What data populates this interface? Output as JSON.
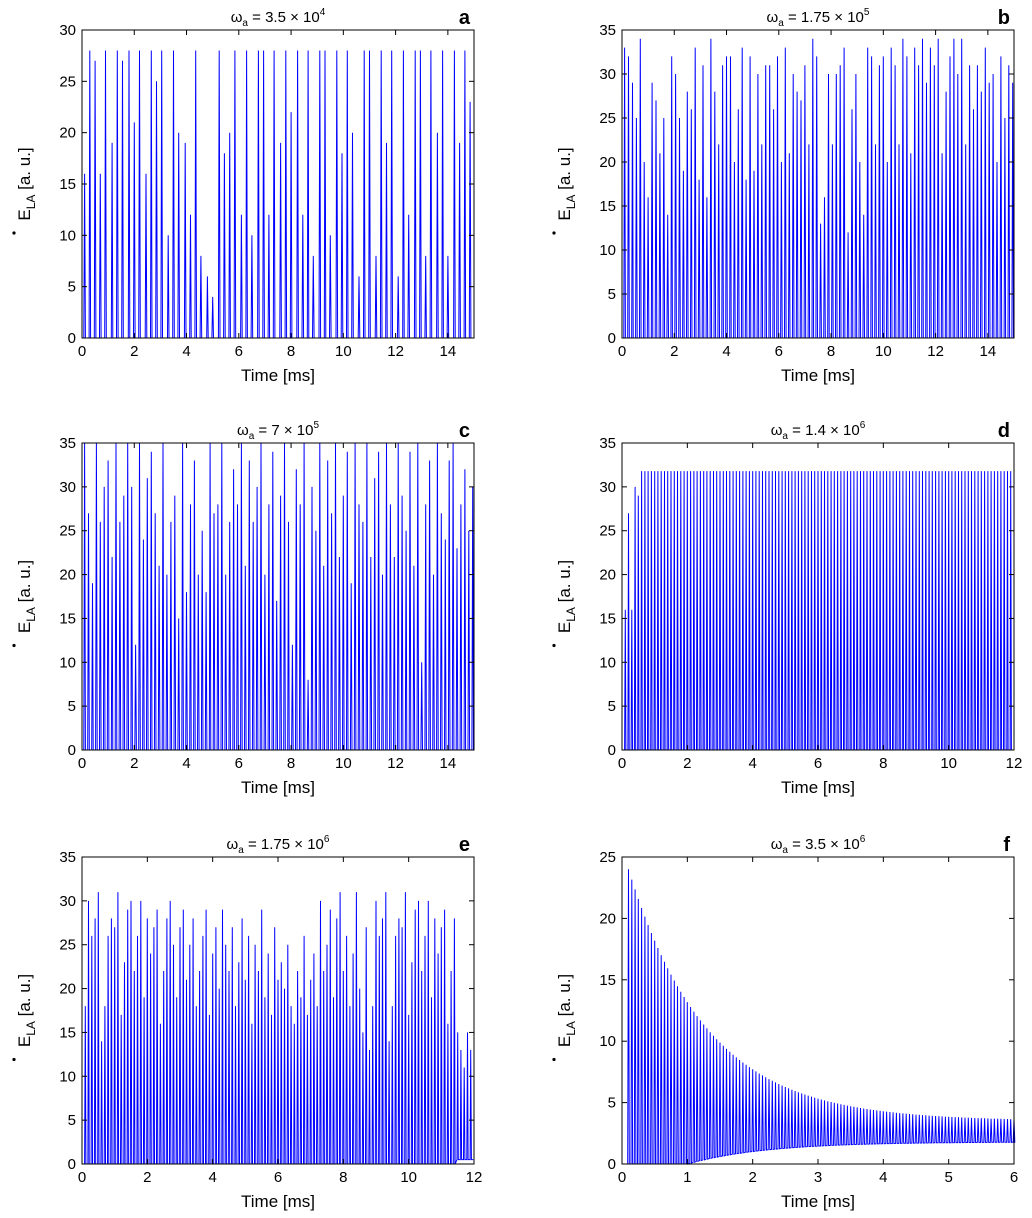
{
  "series_color": "#0000ff",
  "chart_data": [
    {
      "panel": "a",
      "type": "line",
      "title": "ω",
      "title_sub": "a",
      "title_eq": " = 3.5 × 10",
      "title_sup": "4",
      "xlabel": "Time [ms]",
      "ylabel": "E",
      "ylabel_sub": "LA",
      "ylabel_rest": " [a. u.]",
      "xlim": [
        0,
        15
      ],
      "ylim": [
        0,
        30
      ],
      "xticks": [
        0,
        2,
        4,
        6,
        8,
        10,
        12,
        14
      ],
      "yticks": [
        0,
        5,
        10,
        15,
        20,
        25,
        30
      ],
      "spike_times": [
        0.1,
        0.3,
        0.5,
        0.7,
        0.9,
        1.15,
        1.35,
        1.55,
        1.8,
        2.0,
        2.2,
        2.45,
        2.65,
        2.85,
        3.05,
        3.3,
        3.5,
        3.7,
        3.95,
        4.15,
        4.35,
        4.55,
        4.8,
        5.0,
        5.25,
        5.45,
        5.65,
        5.85,
        6.1,
        6.3,
        6.5,
        6.75,
        6.95,
        7.15,
        7.35,
        7.6,
        7.8,
        8.0,
        8.25,
        8.45,
        8.65,
        8.85,
        9.1,
        9.3,
        9.5,
        9.75,
        9.95,
        10.15,
        10.35,
        10.6,
        10.8,
        11.0,
        11.25,
        11.45,
        11.65,
        11.85,
        12.1,
        12.3,
        12.5,
        12.75,
        12.95,
        13.15,
        13.35,
        13.6,
        13.8,
        14.0,
        14.25,
        14.45,
        14.65,
        14.85
      ],
      "spike_peaks": [
        16,
        28,
        27,
        16,
        28,
        19,
        28,
        27,
        28,
        21,
        28,
        16,
        28,
        25,
        28,
        10,
        28,
        20,
        19,
        12,
        28,
        8,
        6,
        4,
        28,
        18,
        20,
        28,
        12,
        28,
        10,
        28,
        28,
        12,
        28,
        19,
        28,
        22,
        28,
        12,
        28,
        8,
        28,
        28,
        10,
        28,
        18,
        28,
        20,
        6,
        28,
        28,
        8,
        28,
        19,
        28,
        6,
        28,
        12,
        28,
        28,
        8,
        28,
        20,
        28,
        8,
        28,
        19,
        28,
        23
      ]
    },
    {
      "panel": "b",
      "type": "line",
      "title": "ω",
      "title_sub": "a",
      "title_eq": " = 1.75 × 10",
      "title_sup": "5",
      "xlabel": "Time [ms]",
      "ylabel": "E",
      "ylabel_sub": "LA",
      "ylabel_rest": " [a. u.]",
      "xlim": [
        0,
        15
      ],
      "ylim": [
        0,
        35
      ],
      "xticks": [
        0,
        2,
        4,
        6,
        8,
        10,
        12,
        14
      ],
      "yticks": [
        0,
        5,
        10,
        15,
        20,
        25,
        30,
        35
      ],
      "spike_times": [
        0.1,
        0.25,
        0.4,
        0.55,
        0.7,
        0.85,
        1.0,
        1.15,
        1.3,
        1.45,
        1.6,
        1.75,
        1.9,
        2.05,
        2.2,
        2.35,
        2.5,
        2.65,
        2.8,
        2.95,
        3.1,
        3.25,
        3.4,
        3.55,
        3.7,
        3.85,
        4.0,
        4.15,
        4.3,
        4.45,
        4.6,
        4.75,
        4.9,
        5.05,
        5.2,
        5.35,
        5.5,
        5.65,
        5.8,
        5.95,
        6.1,
        6.25,
        6.4,
        6.55,
        6.7,
        6.85,
        7.0,
        7.15,
        7.3,
        7.45,
        7.6,
        7.75,
        7.9,
        8.05,
        8.2,
        8.35,
        8.5,
        8.65,
        8.8,
        8.95,
        9.1,
        9.25,
        9.4,
        9.55,
        9.7,
        9.85,
        10.0,
        10.15,
        10.3,
        10.45,
        10.6,
        10.75,
        10.9,
        11.05,
        11.2,
        11.35,
        11.5,
        11.65,
        11.8,
        11.95,
        12.1,
        12.25,
        12.4,
        12.55,
        12.7,
        12.85,
        13.0,
        13.15,
        13.3,
        13.45,
        13.6,
        13.75,
        13.9,
        14.05,
        14.2,
        14.35,
        14.5,
        14.65,
        14.8,
        14.95
      ],
      "spike_peaks": [
        33,
        32,
        29,
        25,
        34,
        20,
        16,
        29,
        27,
        21,
        25,
        14,
        32,
        30,
        25,
        19,
        28,
        26,
        33,
        18,
        31,
        16,
        34,
        28,
        22,
        31,
        32,
        32,
        20,
        26,
        33,
        18,
        32,
        19,
        30,
        22,
        31,
        31,
        26,
        32,
        20,
        33,
        21,
        30,
        28,
        27,
        31,
        22,
        34,
        32,
        13,
        16,
        30,
        22,
        30,
        31,
        33,
        12,
        26,
        30,
        20,
        14,
        33,
        32,
        22,
        31,
        32,
        20,
        33,
        31,
        22,
        34,
        32,
        21,
        33,
        31,
        34,
        29,
        33,
        31,
        34,
        21,
        28,
        32,
        34,
        30,
        34,
        22,
        31,
        26,
        31,
        28,
        33,
        29,
        30,
        20,
        32,
        25,
        31,
        29
      ]
    },
    {
      "panel": "c",
      "type": "line",
      "title": "ω",
      "title_sub": "a",
      "title_eq": " = 7 × 10",
      "title_sup": "5",
      "xlabel": "Time [ms]",
      "ylabel": "E",
      "ylabel_sub": "LA",
      "ylabel_rest": " [a. u.]",
      "xlim": [
        0,
        15
      ],
      "ylim": [
        0,
        35
      ],
      "xticks": [
        0,
        2,
        4,
        6,
        8,
        10,
        12,
        14
      ],
      "yticks": [
        0,
        5,
        10,
        15,
        20,
        25,
        30,
        35
      ],
      "spike_times": [
        0.1,
        0.25,
        0.4,
        0.55,
        0.7,
        0.85,
        1.0,
        1.15,
        1.3,
        1.45,
        1.6,
        1.75,
        1.9,
        2.05,
        2.2,
        2.35,
        2.5,
        2.65,
        2.8,
        2.95,
        3.1,
        3.25,
        3.4,
        3.55,
        3.7,
        3.85,
        4.0,
        4.15,
        4.3,
        4.45,
        4.6,
        4.75,
        4.9,
        5.05,
        5.2,
        5.35,
        5.5,
        5.65,
        5.8,
        5.95,
        6.1,
        6.25,
        6.4,
        6.55,
        6.7,
        6.85,
        7.0,
        7.15,
        7.3,
        7.45,
        7.6,
        7.75,
        7.9,
        8.05,
        8.2,
        8.35,
        8.5,
        8.65,
        8.8,
        8.95,
        9.1,
        9.25,
        9.4,
        9.55,
        9.7,
        9.85,
        10.0,
        10.15,
        10.3,
        10.45,
        10.6,
        10.75,
        10.9,
        11.05,
        11.2,
        11.35,
        11.5,
        11.65,
        11.8,
        11.95,
        12.1,
        12.25,
        12.4,
        12.55,
        12.7,
        12.85,
        13.0,
        13.15,
        13.3,
        13.45,
        13.6,
        13.75,
        13.9,
        14.05,
        14.2,
        14.35,
        14.5,
        14.65,
        14.8,
        14.95
      ],
      "spike_peaks": [
        35,
        27,
        19,
        35,
        26,
        30,
        33,
        22,
        35,
        26,
        29,
        35,
        30,
        12,
        35,
        24,
        31,
        34,
        27,
        21,
        35,
        20,
        26,
        29,
        15,
        35,
        18,
        28,
        33,
        20,
        25,
        18,
        35,
        27,
        28,
        35,
        20,
        26,
        32,
        28,
        35,
        21,
        33,
        26,
        30,
        35,
        20,
        28,
        34,
        17,
        29,
        35,
        26,
        12,
        32,
        28,
        35,
        8,
        30,
        25,
        35,
        21,
        33,
        27,
        35,
        22,
        29,
        34,
        19,
        35,
        28,
        26,
        35,
        22,
        31,
        34,
        20,
        35,
        28,
        22,
        35,
        29,
        25,
        34,
        21,
        35,
        10,
        28,
        33,
        20,
        35,
        27,
        24,
        33,
        35,
        23,
        28,
        32,
        25,
        30
      ]
    },
    {
      "panel": "d",
      "type": "line",
      "title": "ω",
      "title_sub": "a",
      "title_eq": " = 1.4 × 10",
      "title_sup": "6",
      "xlabel": "Time [ms]",
      "ylabel": "E",
      "ylabel_sub": "LA",
      "ylabel_rest": " [a. u.]",
      "xlim": [
        0,
        12
      ],
      "ylim": [
        0,
        35
      ],
      "xticks": [
        0,
        2,
        4,
        6,
        8,
        10,
        12
      ],
      "yticks": [
        0,
        5,
        10,
        15,
        20,
        25,
        30,
        35
      ],
      "spike_period": 0.1,
      "spike_start": 0.1,
      "spike_end": 11.95,
      "early_peaks": [
        16,
        27,
        16,
        30,
        29,
        31.8
      ],
      "steady_peak": 31.8
    },
    {
      "panel": "e",
      "type": "line",
      "title": "ω",
      "title_sub": "a",
      "title_eq": " = 1.75 × 10",
      "title_sup": "6",
      "xlabel": "Time [ms]",
      "ylabel": "E",
      "ylabel_sub": "LA",
      "ylabel_rest": " [a. u.]",
      "xlim": [
        0,
        12
      ],
      "ylim": [
        0,
        35
      ],
      "xticks": [
        0,
        2,
        4,
        6,
        8,
        10,
        12
      ],
      "yticks": [
        0,
        5,
        10,
        15,
        20,
        25,
        30,
        35
      ],
      "spike_period": 0.1,
      "spike_start": 0.1,
      "spike_end": 11.9,
      "peaks_pattern": [
        18,
        30,
        26,
        28,
        31,
        14,
        18,
        26,
        28,
        27,
        31,
        17,
        23,
        29,
        30,
        22,
        26,
        30,
        19,
        28,
        24,
        27,
        29,
        16,
        22,
        28,
        30,
        25,
        19,
        27,
        29,
        21,
        25,
        28,
        18,
        22,
        26,
        29,
        17,
        24,
        27,
        20,
        29,
        25,
        22,
        27,
        18,
        23,
        28,
        21,
        26,
        16,
        25,
        22,
        29,
        19,
        24,
        17,
        27,
        21,
        23,
        20,
        25,
        18,
        16,
        22,
        19,
        26,
        17,
        21,
        24,
        18,
        30,
        22,
        25,
        29,
        19,
        28,
        31,
        22,
        26,
        18,
        24,
        31,
        20,
        15,
        27,
        13
      ],
      "tail_peak": 15,
      "tail_start": 11.4
    },
    {
      "panel": "f",
      "type": "line",
      "title": "ω",
      "title_sub": "a",
      "title_eq": " = 3.5 × 10",
      "title_sup": "6",
      "xlabel": "Time [ms]",
      "ylabel": "E",
      "ylabel_sub": "LA",
      "ylabel_rest": " [a. u.]",
      "xlim": [
        0,
        6
      ],
      "ylim": [
        0,
        25
      ],
      "xticks": [
        0,
        1,
        2,
        3,
        4,
        5,
        6
      ],
      "yticks": [
        0,
        5,
        10,
        15,
        20,
        25
      ],
      "spike_period": 0.05,
      "spike_start": 0.1,
      "spike_end": 6.0,
      "envelope_start": 24,
      "envelope_end_high": 3.5,
      "envelope_end_low": 1.8,
      "decay_ms": 1.2
    }
  ]
}
